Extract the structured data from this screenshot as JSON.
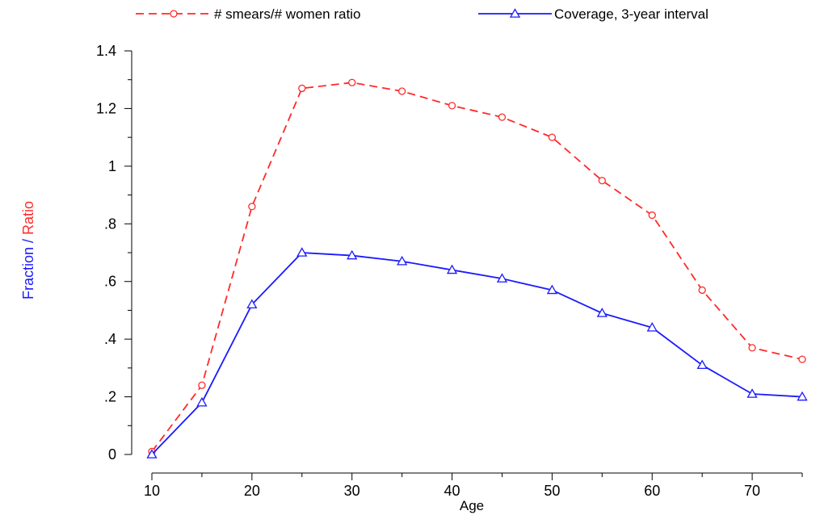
{
  "chart_data": {
    "type": "line",
    "xlabel": "Age",
    "ylabel_parts": [
      {
        "text": "Fraction",
        "color": "#1a1aff"
      },
      {
        "text": " / ",
        "color": "#1a1aff"
      },
      {
        "text": "Ratio",
        "color": "#ff2a2a"
      }
    ],
    "xlim": [
      10,
      75
    ],
    "ylim": [
      0,
      1.4
    ],
    "x_ticks": [
      10,
      20,
      30,
      40,
      50,
      60,
      70
    ],
    "x_tick_labels": [
      "10",
      "20",
      "30",
      "40",
      "50",
      "60",
      "70"
    ],
    "x_minor_ticks": [
      15,
      25,
      35,
      45,
      55,
      65,
      75
    ],
    "y_ticks": [
      0,
      0.2,
      0.4,
      0.6,
      0.8,
      1.0,
      1.2,
      1.4
    ],
    "y_tick_labels": [
      "0",
      ".2",
      ".4",
      ".6",
      ".8",
      "1",
      "1.2",
      "1.4"
    ],
    "y_minor_ticks": [
      0.1,
      0.3,
      0.5,
      0.7,
      0.9,
      1.1,
      1.3
    ],
    "grid": false,
    "legend_position": "top",
    "x": [
      10,
      15,
      20,
      25,
      30,
      35,
      40,
      45,
      50,
      55,
      60,
      65,
      70,
      75
    ],
    "series": [
      {
        "name": "# smears/# women ratio",
        "color": "#ff2a2a",
        "line_style": "dashed",
        "marker": "circle",
        "values": [
          0.01,
          0.24,
          0.86,
          1.27,
          1.29,
          1.26,
          1.21,
          1.17,
          1.1,
          0.95,
          0.83,
          0.57,
          0.37,
          0.33
        ]
      },
      {
        "name": "Coverage, 3-year interval",
        "color": "#1a1aff",
        "line_style": "solid",
        "marker": "triangle",
        "values": [
          0.0,
          0.18,
          0.52,
          0.7,
          0.69,
          0.67,
          0.64,
          0.61,
          0.57,
          0.49,
          0.44,
          0.31,
          0.21,
          0.2
        ]
      }
    ]
  }
}
